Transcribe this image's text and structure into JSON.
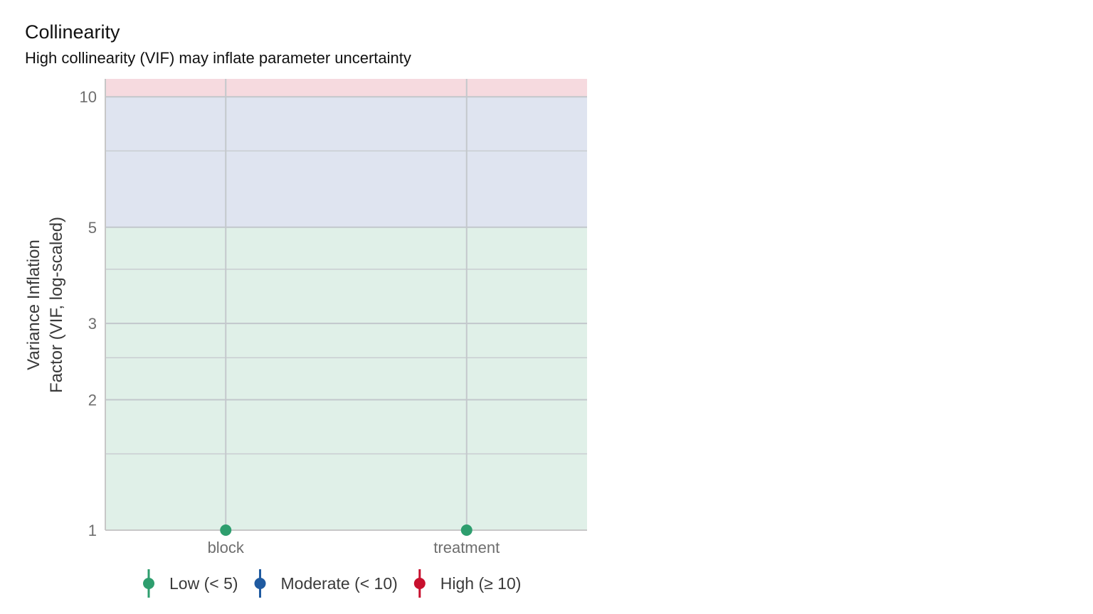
{
  "chart_data": {
    "type": "scatter",
    "title": "Collinearity",
    "subtitle": "High collinearity (VIF) may inflate parameter uncertainty",
    "xlabel": "",
    "ylabel_lines": [
      "Variance Inflation",
      "Factor (VIF, log-scaled)"
    ],
    "y_scale": "log",
    "ylim": [
      1,
      11
    ],
    "y_ticks": [
      1,
      2,
      3,
      5,
      10
    ],
    "y_ticks_labels": [
      "1",
      "2",
      "3",
      "5",
      "10"
    ],
    "y_minor": [
      1.5,
      2.5,
      4,
      7.5
    ],
    "categories": [
      "block",
      "treatment"
    ],
    "series": [
      {
        "name": "Low (< 5)",
        "color": "#2e9e6e",
        "values": [
          1,
          1
        ]
      }
    ],
    "bands": [
      {
        "from": 1,
        "to": 5,
        "color": "#e0f0e8"
      },
      {
        "from": 5,
        "to": 10,
        "color": "#dfe4f0"
      },
      {
        "from": 10,
        "to": 11,
        "color": "#f6dadf"
      }
    ],
    "grid": true,
    "legend_position": "bottom",
    "legend": [
      {
        "label": "Low (< 5)",
        "color": "#2e9e6e"
      },
      {
        "label": "Moderate (< 10)",
        "color": "#1f5aa0"
      },
      {
        "label": "High (≥ 10)",
        "color": "#c8102e"
      }
    ]
  }
}
